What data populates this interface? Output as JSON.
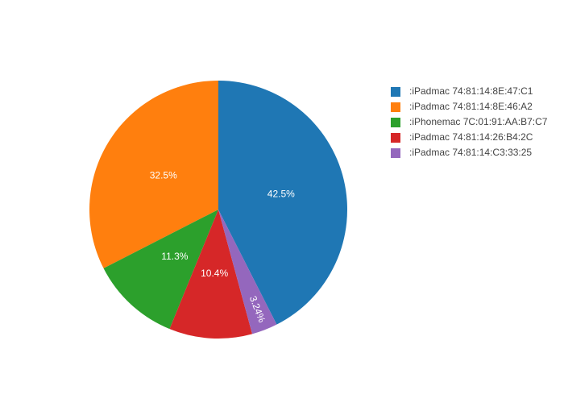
{
  "chart_data": {
    "type": "pie",
    "categories": [
      ":iPadmac 74:81:14:8E:47:C1",
      ":iPadmac 74:81:14:8E:46:A2",
      ":iPhonemac 7C:01:91:AA:B7:C7",
      ":iPadmac 74:81:14:26:B4:2C",
      ":iPadmac 74:81:14:C3:33:25"
    ],
    "values": [
      42.5,
      32.5,
      11.3,
      10.4,
      3.24
    ],
    "value_labels": [
      "42.5%",
      "32.5%",
      "11.3%",
      "10.4%",
      "3.24%"
    ],
    "colors": [
      "#1f77b4",
      "#ff7f0e",
      "#2ca02c",
      "#d62728",
      "#9467bd"
    ],
    "legend": "right"
  }
}
